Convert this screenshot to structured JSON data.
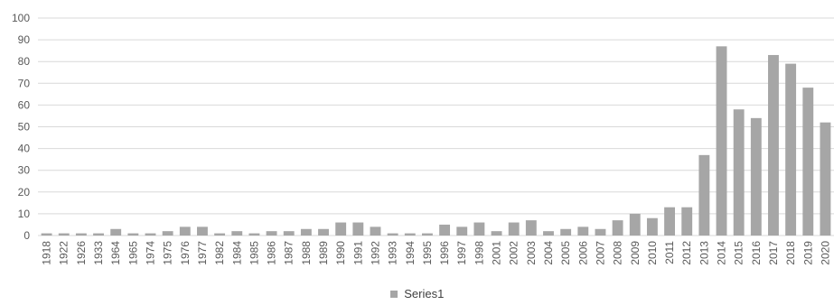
{
  "chart_data": {
    "type": "bar",
    "title": "",
    "xlabel": "",
    "ylabel": "",
    "ylim": [
      0,
      100
    ],
    "yticks": [
      0,
      10,
      20,
      30,
      40,
      50,
      60,
      70,
      80,
      90,
      100
    ],
    "grid": true,
    "legend_position": "bottom",
    "bar_color": "#a6a6a6",
    "gridline_color": "#d9d9d9",
    "categories": [
      "1918",
      "1922",
      "1926",
      "1933",
      "1964",
      "1965",
      "1974",
      "1975",
      "1976",
      "1977",
      "1982",
      "1984",
      "1985",
      "1986",
      "1987",
      "1988",
      "1989",
      "1990",
      "1991",
      "1992",
      "1993",
      "1994",
      "1995",
      "1996",
      "1997",
      "1998",
      "2001",
      "2002",
      "2003",
      "2004",
      "2005",
      "2006",
      "2007",
      "2008",
      "2009",
      "2010",
      "2011",
      "2012",
      "2013",
      "2014",
      "2015",
      "2016",
      "2017",
      "2018",
      "2019",
      "2020"
    ],
    "series": [
      {
        "name": "Series1",
        "values": [
          1,
          1,
          1,
          1,
          3,
          1,
          1,
          2,
          4,
          4,
          1,
          2,
          1,
          2,
          2,
          3,
          3,
          6,
          6,
          4,
          1,
          1,
          1,
          5,
          4,
          6,
          2,
          6,
          7,
          2,
          3,
          4,
          3,
          7,
          10,
          8,
          13,
          13,
          37,
          87,
          58,
          54,
          83,
          79,
          68,
          52
        ]
      }
    ]
  }
}
